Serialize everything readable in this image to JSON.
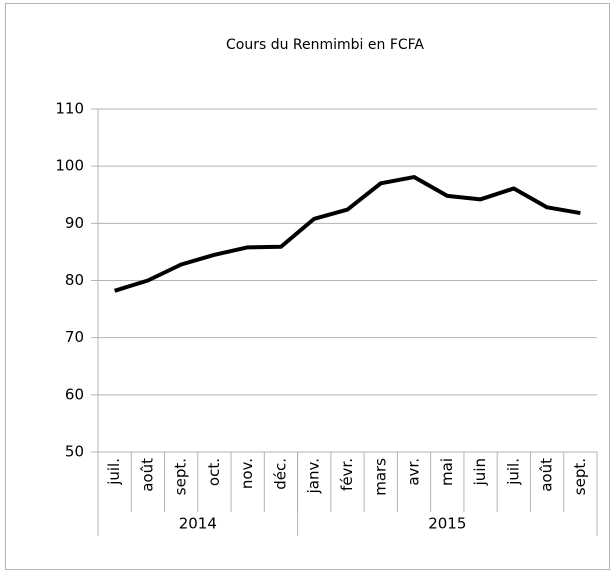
{
  "chart_data": {
    "type": "line",
    "title": "Cours du Renmimbi en FCFA",
    "groups": [
      {
        "label": "2014",
        "categories": [
          "juil.",
          "août",
          "sept.",
          "oct.",
          "nov.",
          "déc."
        ]
      },
      {
        "label": "2015",
        "categories": [
          "janv.",
          "févr.",
          "mars",
          "avr.",
          "mai",
          "juin",
          "juil.",
          "août",
          "sept."
        ]
      }
    ],
    "series": [
      {
        "color": "#000000",
        "values": [
          78.2,
          80,
          82.8,
          84.5,
          85.8,
          85.9,
          90.8,
          92.4,
          97,
          98.1,
          94.8,
          94.2,
          96.1,
          92.8,
          91.8
        ]
      }
    ],
    "ylim": [
      50,
      110
    ],
    "yticks": [
      50,
      60,
      70,
      80,
      90,
      100,
      110
    ],
    "grid": true
  }
}
